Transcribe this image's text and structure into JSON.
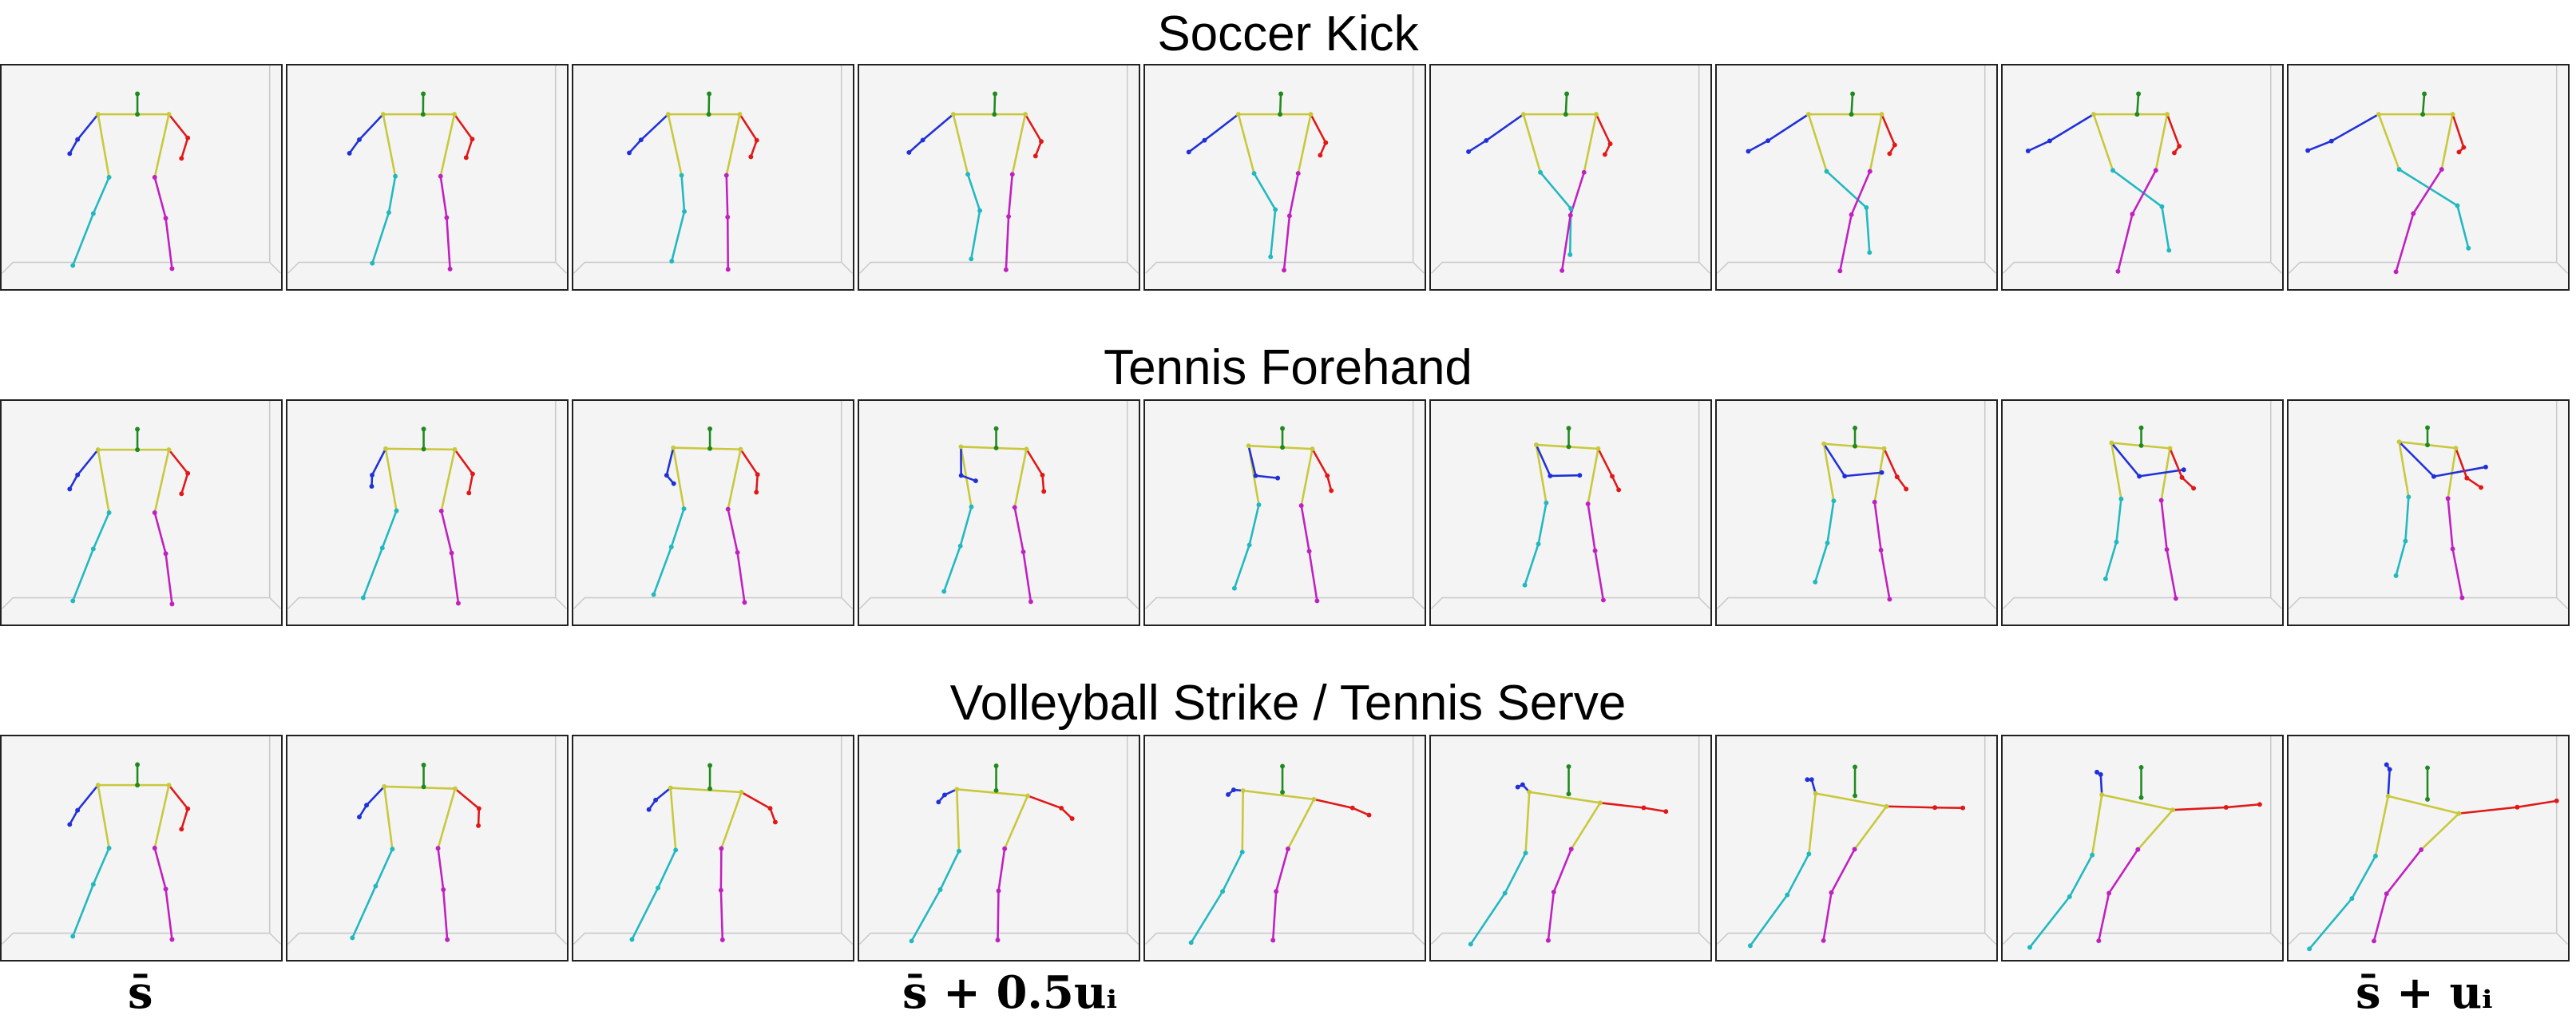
{
  "rows": [
    {
      "title": "Soccer Kick"
    },
    {
      "title": "Tennis Forehand"
    },
    {
      "title": "Volleyball Strike / Tennis Serve"
    }
  ],
  "formulas": {
    "left": "s̄",
    "middle": "s̄ + 0.5uᵢ",
    "right": "s̄ + uᵢ"
  },
  "limb_colors": {
    "torso": "#c8c83c",
    "head": "#1f8a1f",
    "left_arm": "#2030d8",
    "right_arm": "#e01818",
    "left_leg": "#22b8c0",
    "right_leg": "#c020c0"
  }
}
